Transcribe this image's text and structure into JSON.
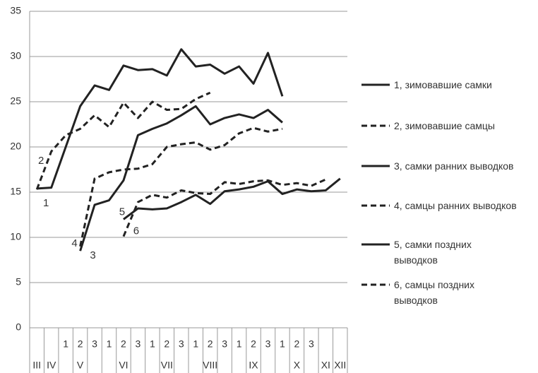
{
  "chart_data": {
    "type": "line",
    "category_groups": [
      {
        "name": "III",
        "categories": [
          null
        ]
      },
      {
        "name": "IV",
        "categories": [
          null
        ]
      },
      {
        "name": "V",
        "categories": [
          "1",
          "2",
          "3"
        ]
      },
      {
        "name": "VI",
        "categories": [
          "1",
          "2",
          "3"
        ]
      },
      {
        "name": "VII",
        "categories": [
          "1",
          "2",
          "3"
        ]
      },
      {
        "name": "VIII",
        "categories": [
          "1",
          "2",
          "3"
        ]
      },
      {
        "name": "IX",
        "categories": [
          "1",
          "2",
          "3"
        ]
      },
      {
        "name": "X",
        "categories": [
          "1",
          "2",
          "3"
        ]
      },
      {
        "name": "XI",
        "categories": [
          null
        ]
      },
      {
        "name": "XII",
        "categories": [
          null
        ]
      }
    ],
    "series": [
      {
        "name": "1, зимовавшие самки",
        "label": "1",
        "color": "#222",
        "dashed": false,
        "values": [
          15.4,
          15.5,
          20,
          24.5,
          26.8,
          26.3,
          29.0,
          28.5,
          28.6,
          27.9,
          30.8,
          28.9,
          29.1,
          28.1,
          28.9,
          27.0,
          30.4,
          25.6,
          null,
          null,
          null,
          null
        ]
      },
      {
        "name": "2, зимовавшие самцы",
        "label": "2",
        "color": "#222",
        "dashed": true,
        "values": [
          15.3,
          19.5,
          21.3,
          22.0,
          23.5,
          22.2,
          24.9,
          23.2,
          25.0,
          24.1,
          24.2,
          25.3,
          26.0,
          null,
          null,
          null,
          null,
          null,
          null,
          null,
          null,
          null
        ]
      },
      {
        "name": "3, самки ранних выводков",
        "label": "3",
        "color": "#222",
        "dashed": false,
        "values": [
          null,
          null,
          null,
          8.5,
          13.6,
          14.1,
          16.3,
          21.3,
          22.0,
          22.6,
          23.5,
          24.5,
          22.5,
          23.2,
          23.6,
          23.2,
          24.1,
          22.7,
          null,
          null,
          null,
          null
        ]
      },
      {
        "name": "4, самцы ранних выводков",
        "label": "4",
        "color": "#222",
        "dashed": true,
        "values": [
          null,
          null,
          null,
          9.0,
          16.5,
          17.2,
          17.5,
          17.6,
          18.1,
          20.0,
          20.3,
          20.5,
          19.7,
          20.2,
          21.5,
          22.1,
          21.7,
          22.0,
          null,
          null,
          null,
          null
        ]
      },
      {
        "name": "5, самки поздних выводков",
        "label": "5",
        "color": "#222",
        "dashed": false,
        "values": [
          null,
          null,
          null,
          null,
          null,
          null,
          12.0,
          13.2,
          13.1,
          13.2,
          13.9,
          14.7,
          13.7,
          15.1,
          15.3,
          15.6,
          16.2,
          14.8,
          15.3,
          15.1,
          15.2,
          16.5
        ]
      },
      {
        "name": "6, самцы поздних выводков",
        "label": "6",
        "color": "#222",
        "dashed": true,
        "values": [
          null,
          null,
          null,
          null,
          null,
          null,
          10.1,
          13.9,
          14.7,
          14.4,
          15.2,
          14.9,
          14.8,
          16.1,
          15.9,
          16.2,
          16.3,
          15.8,
          16.0,
          15.7,
          16.4,
          null
        ]
      }
    ],
    "ylim": [
      0,
      35
    ],
    "yticks": [
      0,
      5,
      10,
      15,
      20,
      25,
      30,
      35
    ],
    "grid": true
  }
}
